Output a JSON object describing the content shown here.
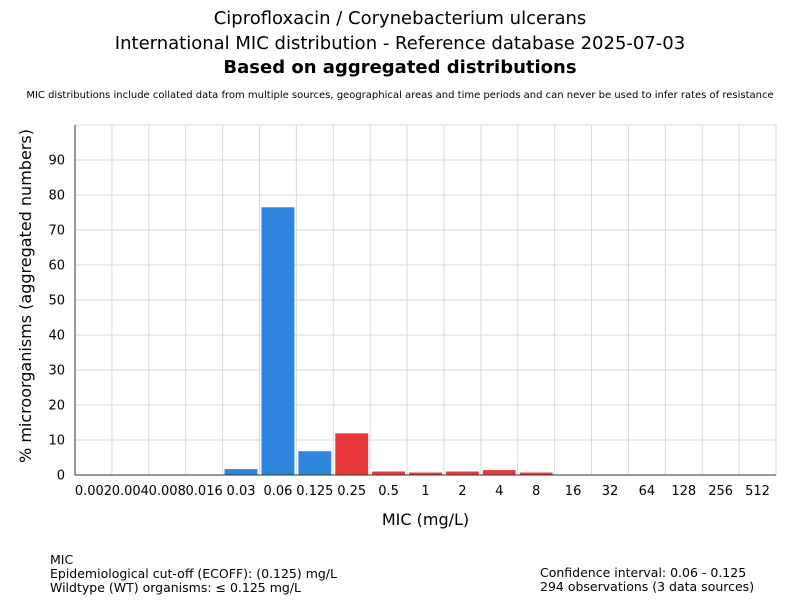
{
  "header": {
    "title_line1": "Ciprofloxacin / Corynebacterium ulcerans",
    "title_line2": "International MIC distribution - Reference database 2025-07-03",
    "title_line3": "Based on aggregated distributions",
    "disclaimer": "MIC distributions include collated data from multiple sources, geographical areas and time periods and can never be used to infer rates of resistance"
  },
  "footer": {
    "left_label": "MIC",
    "ecoff_text": "Epidemiological cut-off (ECOFF): (0.125) mg/L",
    "wildtype_text": "Wildtype (WT) organisms: ≤ 0.125 mg/L",
    "confidence_text": "Confidence interval: 0.06 - 0.125",
    "observations_text": "294 observations (3 data sources)"
  },
  "colors": {
    "wildtype": "#2e86de",
    "non_wildtype": "#e8383b",
    "grid": "#d9d9d9",
    "axis": "#333333"
  },
  "chart_data": {
    "type": "bar",
    "xlabel": "MIC (mg/L)",
    "ylabel": "% microorganisms (aggregated numbers)",
    "ylim": [
      0,
      100
    ],
    "yticks": [
      0,
      10,
      20,
      30,
      40,
      50,
      60,
      70,
      80,
      90
    ],
    "grid": true,
    "categories": [
      "0.002",
      "0.004",
      "0.008",
      "0.016",
      "0.03",
      "0.06",
      "0.125",
      "0.25",
      "0.5",
      "1",
      "2",
      "4",
      "8",
      "16",
      "32",
      "64",
      "128",
      "256",
      "512"
    ],
    "values": [
      0,
      0,
      0,
      0,
      1.7,
      76.5,
      6.8,
      11.9,
      1.0,
      0.7,
      1.0,
      1.4,
      0.7,
      0,
      0,
      0,
      0,
      0,
      0
    ],
    "wildtype": [
      true,
      true,
      true,
      true,
      true,
      true,
      true,
      false,
      false,
      false,
      false,
      false,
      false,
      false,
      false,
      false,
      false,
      false,
      false
    ]
  }
}
